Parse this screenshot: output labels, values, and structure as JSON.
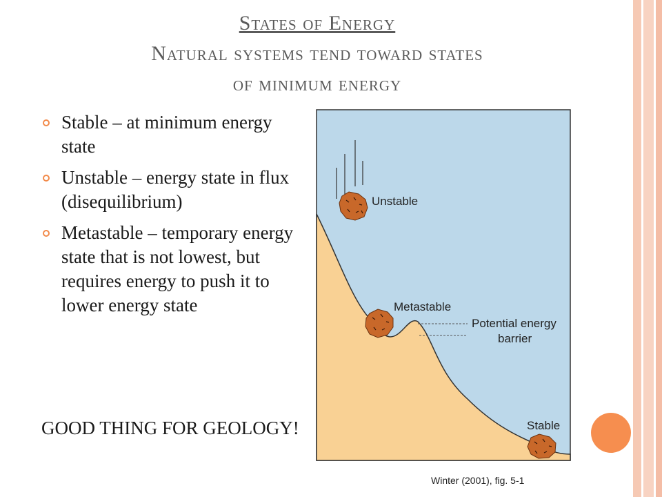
{
  "title": {
    "line1": "States of Energy",
    "line2": "Natural systems tend toward states",
    "line3": "of minimum energy"
  },
  "bullets": [
    "Stable – at minimum energy state",
    "Unstable – energy state in flux (disequilibrium)",
    "Metastable – temporary energy state that is not lowest, but requires energy to push it to lower energy state"
  ],
  "note": "GOOD THING FOR GEOLOGY!",
  "figure": {
    "labels": {
      "unstable": "Unstable",
      "metastable": "Metastable",
      "barrier_line1": "Potential energy",
      "barrier_line2": "barrier",
      "stable": "Stable"
    },
    "caption": "Winter (2001), fig. 5-1",
    "colors": {
      "sky": "#bcd8ea",
      "ground": "#f9d194",
      "rock": "#c8682a",
      "accent": "#f68e4f"
    }
  }
}
